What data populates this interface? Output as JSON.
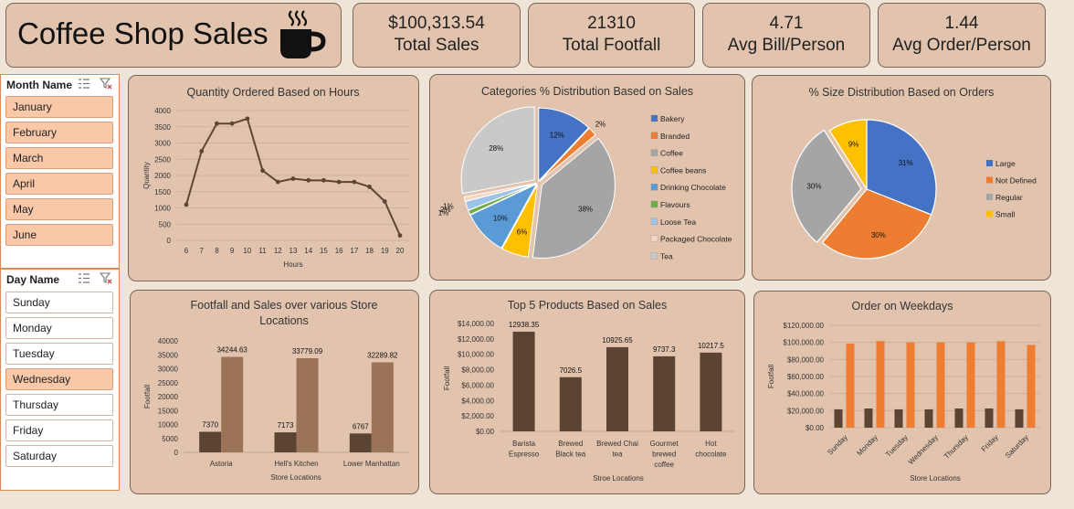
{
  "header": {
    "title": "Coffee Shop Sales",
    "icon": "coffee-cup-icon"
  },
  "kpis": [
    {
      "value": "$100,313.54",
      "label": "Total Sales"
    },
    {
      "value": "21310",
      "label": "Total Footfall"
    },
    {
      "value": "4.71",
      "label": "Avg Bill/Person"
    },
    {
      "value": "1.44",
      "label": "Avg Order/Person"
    }
  ],
  "month_slicer": {
    "title": "Month Name",
    "items": [
      "January",
      "February",
      "March",
      "April",
      "May",
      "June"
    ]
  },
  "day_slicer": {
    "title": "Day Name",
    "items": [
      "Sunday",
      "Monday",
      "Tuesday",
      "Wednesday",
      "Thursday",
      "Friday",
      "Saturday"
    ],
    "selected": "Wednesday"
  },
  "colors": {
    "brown_dark": "#5b4431",
    "brown_light": "#9b7357",
    "orange": "#ee7d31",
    "line": "#5e4534"
  },
  "chart_data": [
    {
      "id": "hours",
      "type": "line",
      "title": "Quantity Ordered Based on Hours",
      "xlabel": "Hours",
      "ylabel": "Quantity",
      "x": [
        6,
        7,
        8,
        9,
        10,
        11,
        12,
        13,
        14,
        15,
        16,
        17,
        18,
        19,
        20
      ],
      "values": [
        1100,
        2750,
        3600,
        3600,
        3750,
        2150,
        1800,
        1900,
        1850,
        1850,
        1800,
        1800,
        1650,
        1200,
        150
      ],
      "ylim": [
        0,
        4000
      ],
      "yticks": [
        "0",
        "500",
        "1000",
        "1500",
        "2000",
        "2500",
        "3000",
        "3500",
        "4000"
      ]
    },
    {
      "id": "categories",
      "type": "pie",
      "title": "Categories % Distribution Based on Sales",
      "labels": [
        "Bakery",
        "Branded",
        "Coffee",
        "Coffee beans",
        "Drinking Chocolate",
        "Flavours",
        "Loose Tea",
        "Packaged Chocolate",
        "Tea"
      ],
      "values": [
        12,
        2,
        38,
        6,
        10,
        1,
        2,
        1,
        28
      ],
      "value_labels": [
        "12%",
        "2%",
        "38%",
        "6%",
        "10%",
        "1%",
        "2%",
        "1%",
        "28%"
      ],
      "colors": [
        "#4472c4",
        "#ed7d31",
        "#a5a5a5",
        "#ffc000",
        "#5b9bd5",
        "#70ad47",
        "#9dc3e6",
        "#f4d6c3",
        "#c9c9c9"
      ]
    },
    {
      "id": "size",
      "type": "pie",
      "title": "% Size Distribution Based on Orders",
      "labels": [
        "Large",
        "Not Defined",
        "Regular",
        "Small"
      ],
      "values": [
        31,
        30,
        30,
        9
      ],
      "value_labels": [
        "31%",
        "30%",
        "30%",
        "9%"
      ],
      "colors": [
        "#4472c4",
        "#ed7d31",
        "#a5a5a5",
        "#ffc000"
      ]
    },
    {
      "id": "stores",
      "type": "bar",
      "title": "Footfall and Sales over various Store Locations",
      "xlabel": "Store Locations",
      "ylabel": "Footfall",
      "categories": [
        "Astoria",
        "Hell's Kitchen",
        "Lower Manhattan"
      ],
      "series": [
        {
          "name": "Footfall",
          "values": [
            7370,
            7173,
            6767
          ],
          "labels": [
            "7370",
            "7173",
            "6767"
          ]
        },
        {
          "name": "Sales",
          "values": [
            34244.63,
            33779.09,
            32289.82
          ],
          "labels": [
            "34244.63",
            "33779.09",
            "32289.82"
          ]
        }
      ],
      "ylim": [
        0,
        40000
      ],
      "yticks": [
        "0",
        "5000",
        "10000",
        "15000",
        "20000",
        "25000",
        "30000",
        "35000",
        "40000"
      ]
    },
    {
      "id": "products",
      "type": "bar",
      "title": "Top 5 Products Based on Sales",
      "xlabel": "Stroe Locations",
      "ylabel": "Footfall",
      "categories": [
        [
          "Barista",
          "Espresso"
        ],
        [
          "Brewed",
          "Black tea"
        ],
        [
          "Brewed Chai",
          "tea"
        ],
        [
          "Gourmet",
          "brewed",
          "coffee"
        ],
        [
          "Hot",
          "chocolate"
        ]
      ],
      "values": [
        12938.35,
        7026.5,
        10925.65,
        9737.3,
        10217.5
      ],
      "labels": [
        "12938.35",
        "7026.5",
        "10925.65",
        "9737.3",
        "10217.5"
      ],
      "ylim": [
        0,
        14000
      ],
      "yticks": [
        "$0.00",
        "$2,000.00",
        "$4,000.00",
        "$6,000.00",
        "$8,000.00",
        "$10,000.00",
        "$12,000.00",
        "$14,000.00"
      ]
    },
    {
      "id": "weekdays",
      "type": "bar",
      "title": "Order on Weekdays",
      "xlabel": "Store Locations",
      "ylabel": "Footfall",
      "categories": [
        "Sunday",
        "Monday",
        "Tuesday",
        "Wednesday",
        "Thursday",
        "Friday",
        "Saturday"
      ],
      "series": [
        {
          "name": "Footfall",
          "values": [
            21500,
            22500,
            21500,
            21500,
            22500,
            22500,
            21500
          ]
        },
        {
          "name": "Sales",
          "values": [
            98500,
            101500,
            100000,
            100000,
            100000,
            101500,
            97000
          ]
        }
      ],
      "ylim": [
        0,
        120000
      ],
      "yticks": [
        "$0.00",
        "$20,000.00",
        "$40,000.00",
        "$60,000.00",
        "$80,000.00",
        "$100,000.00",
        "$120,000.00"
      ]
    }
  ]
}
